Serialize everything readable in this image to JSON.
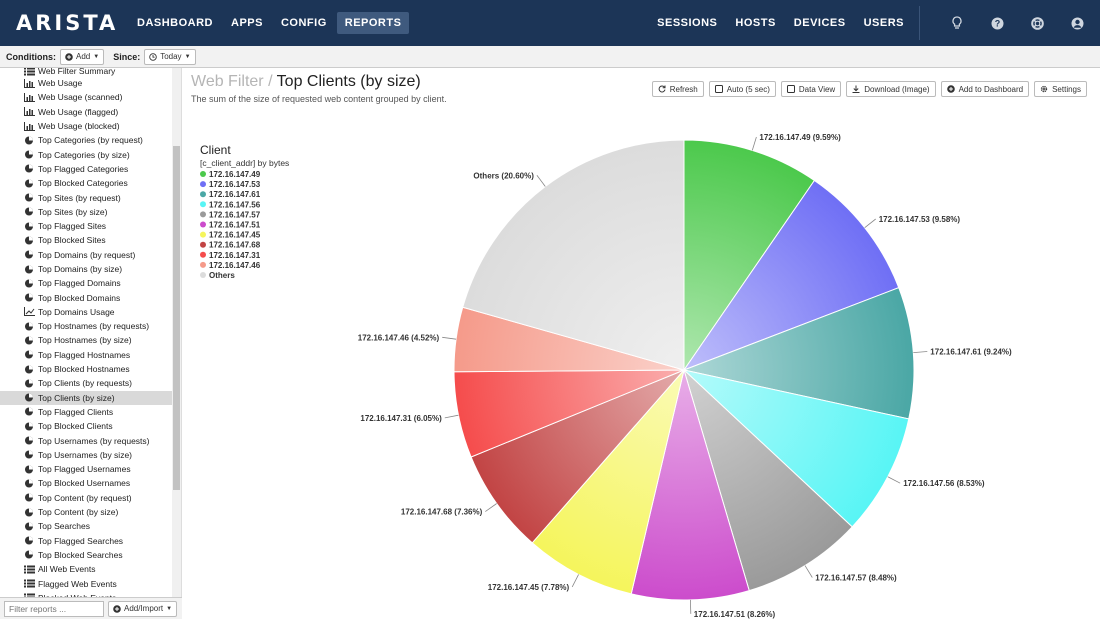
{
  "brand": "ARISTA",
  "nav": {
    "left": [
      "DASHBOARD",
      "APPS",
      "CONFIG",
      "REPORTS"
    ],
    "active": "REPORTS",
    "right": [
      "SESSIONS",
      "HOSTS",
      "DEVICES",
      "USERS"
    ],
    "icons": [
      "lightbulb-icon",
      "help-icon",
      "support-icon",
      "user-icon"
    ]
  },
  "conditions": {
    "label": "Conditions:",
    "add_label": "Add",
    "since_label": "Since:",
    "since_value": "Today"
  },
  "sidebar": {
    "items": [
      {
        "label": "Web Filter Summary",
        "icon": "list"
      },
      {
        "label": "Web Usage",
        "icon": "bar"
      },
      {
        "label": "Web Usage (scanned)",
        "icon": "bar"
      },
      {
        "label": "Web Usage (flagged)",
        "icon": "bar"
      },
      {
        "label": "Web Usage (blocked)",
        "icon": "bar"
      },
      {
        "label": "Top Categories (by request)",
        "icon": "pie"
      },
      {
        "label": "Top Categories (by size)",
        "icon": "pie"
      },
      {
        "label": "Top Flagged Categories",
        "icon": "pie"
      },
      {
        "label": "Top Blocked Categories",
        "icon": "pie"
      },
      {
        "label": "Top Sites (by request)",
        "icon": "pie"
      },
      {
        "label": "Top Sites (by size)",
        "icon": "pie"
      },
      {
        "label": "Top Flagged Sites",
        "icon": "pie"
      },
      {
        "label": "Top Blocked Sites",
        "icon": "pie"
      },
      {
        "label": "Top Domains (by request)",
        "icon": "pie"
      },
      {
        "label": "Top Domains (by size)",
        "icon": "pie"
      },
      {
        "label": "Top Flagged Domains",
        "icon": "pie"
      },
      {
        "label": "Top Blocked Domains",
        "icon": "pie"
      },
      {
        "label": "Top Domains Usage",
        "icon": "line"
      },
      {
        "label": "Top Hostnames (by requests)",
        "icon": "pie"
      },
      {
        "label": "Top Hostnames (by size)",
        "icon": "pie"
      },
      {
        "label": "Top Flagged Hostnames",
        "icon": "pie"
      },
      {
        "label": "Top Blocked Hostnames",
        "icon": "pie"
      },
      {
        "label": "Top Clients (by requests)",
        "icon": "pie"
      },
      {
        "label": "Top Clients (by size)",
        "icon": "pie"
      },
      {
        "label": "Top Flagged Clients",
        "icon": "pie"
      },
      {
        "label": "Top Blocked Clients",
        "icon": "pie"
      },
      {
        "label": "Top Usernames (by requests)",
        "icon": "pie"
      },
      {
        "label": "Top Usernames (by size)",
        "icon": "pie"
      },
      {
        "label": "Top Flagged Usernames",
        "icon": "pie"
      },
      {
        "label": "Top Blocked Usernames",
        "icon": "pie"
      },
      {
        "label": "Top Content (by request)",
        "icon": "pie"
      },
      {
        "label": "Top Content (by size)",
        "icon": "pie"
      },
      {
        "label": "Top Searches",
        "icon": "pie"
      },
      {
        "label": "Top Flagged Searches",
        "icon": "pie"
      },
      {
        "label": "Top Blocked Searches",
        "icon": "pie"
      },
      {
        "label": "All Web Events",
        "icon": "list"
      },
      {
        "label": "Flagged Web Events",
        "icon": "list"
      },
      {
        "label": "Blocked Web Events",
        "icon": "list"
      }
    ],
    "active_index": 23,
    "filter_placeholder": "Filter reports ...",
    "add_import_label": "Add/Import"
  },
  "report": {
    "category": "Web Filter",
    "separator": "/",
    "name": "Top Clients (by size)",
    "description": "The sum of the size of requested web content grouped by client."
  },
  "toolbar": {
    "refresh": "Refresh",
    "auto": "Auto (5 sec)",
    "data_view": "Data View",
    "download": "Download (Image)",
    "add_dashboard": "Add to Dashboard",
    "settings": "Settings"
  },
  "chart_data": {
    "type": "pie",
    "title": "Client",
    "subtitle": "[c_client_addr] by bytes",
    "legend_position": "top-left",
    "slices": [
      {
        "label": "172.16.147.49",
        "value": 9.59,
        "color": "#4cc94c"
      },
      {
        "label": "172.16.147.53",
        "value": 9.58,
        "color": "#6f6ff5"
      },
      {
        "label": "172.16.147.61",
        "value": 9.24,
        "color": "#4aa7a5"
      },
      {
        "label": "172.16.147.56",
        "value": 8.53,
        "color": "#58f5f5"
      },
      {
        "label": "172.16.147.57",
        "value": 8.48,
        "color": "#9a9a9a"
      },
      {
        "label": "172.16.147.51",
        "value": 8.26,
        "color": "#cc4ccc"
      },
      {
        "label": "172.16.147.45",
        "value": 7.78,
        "color": "#f5f55c"
      },
      {
        "label": "172.16.147.68",
        "value": 7.36,
        "color": "#c24444"
      },
      {
        "label": "172.16.147.31",
        "value": 6.05,
        "color": "#f54c4c"
      },
      {
        "label": "172.16.147.46",
        "value": 4.52,
        "color": "#f59a8a"
      },
      {
        "label": "Others",
        "value": 20.6,
        "color": "#dcdcdc"
      }
    ],
    "label_format": "{label} ({value}%)"
  }
}
